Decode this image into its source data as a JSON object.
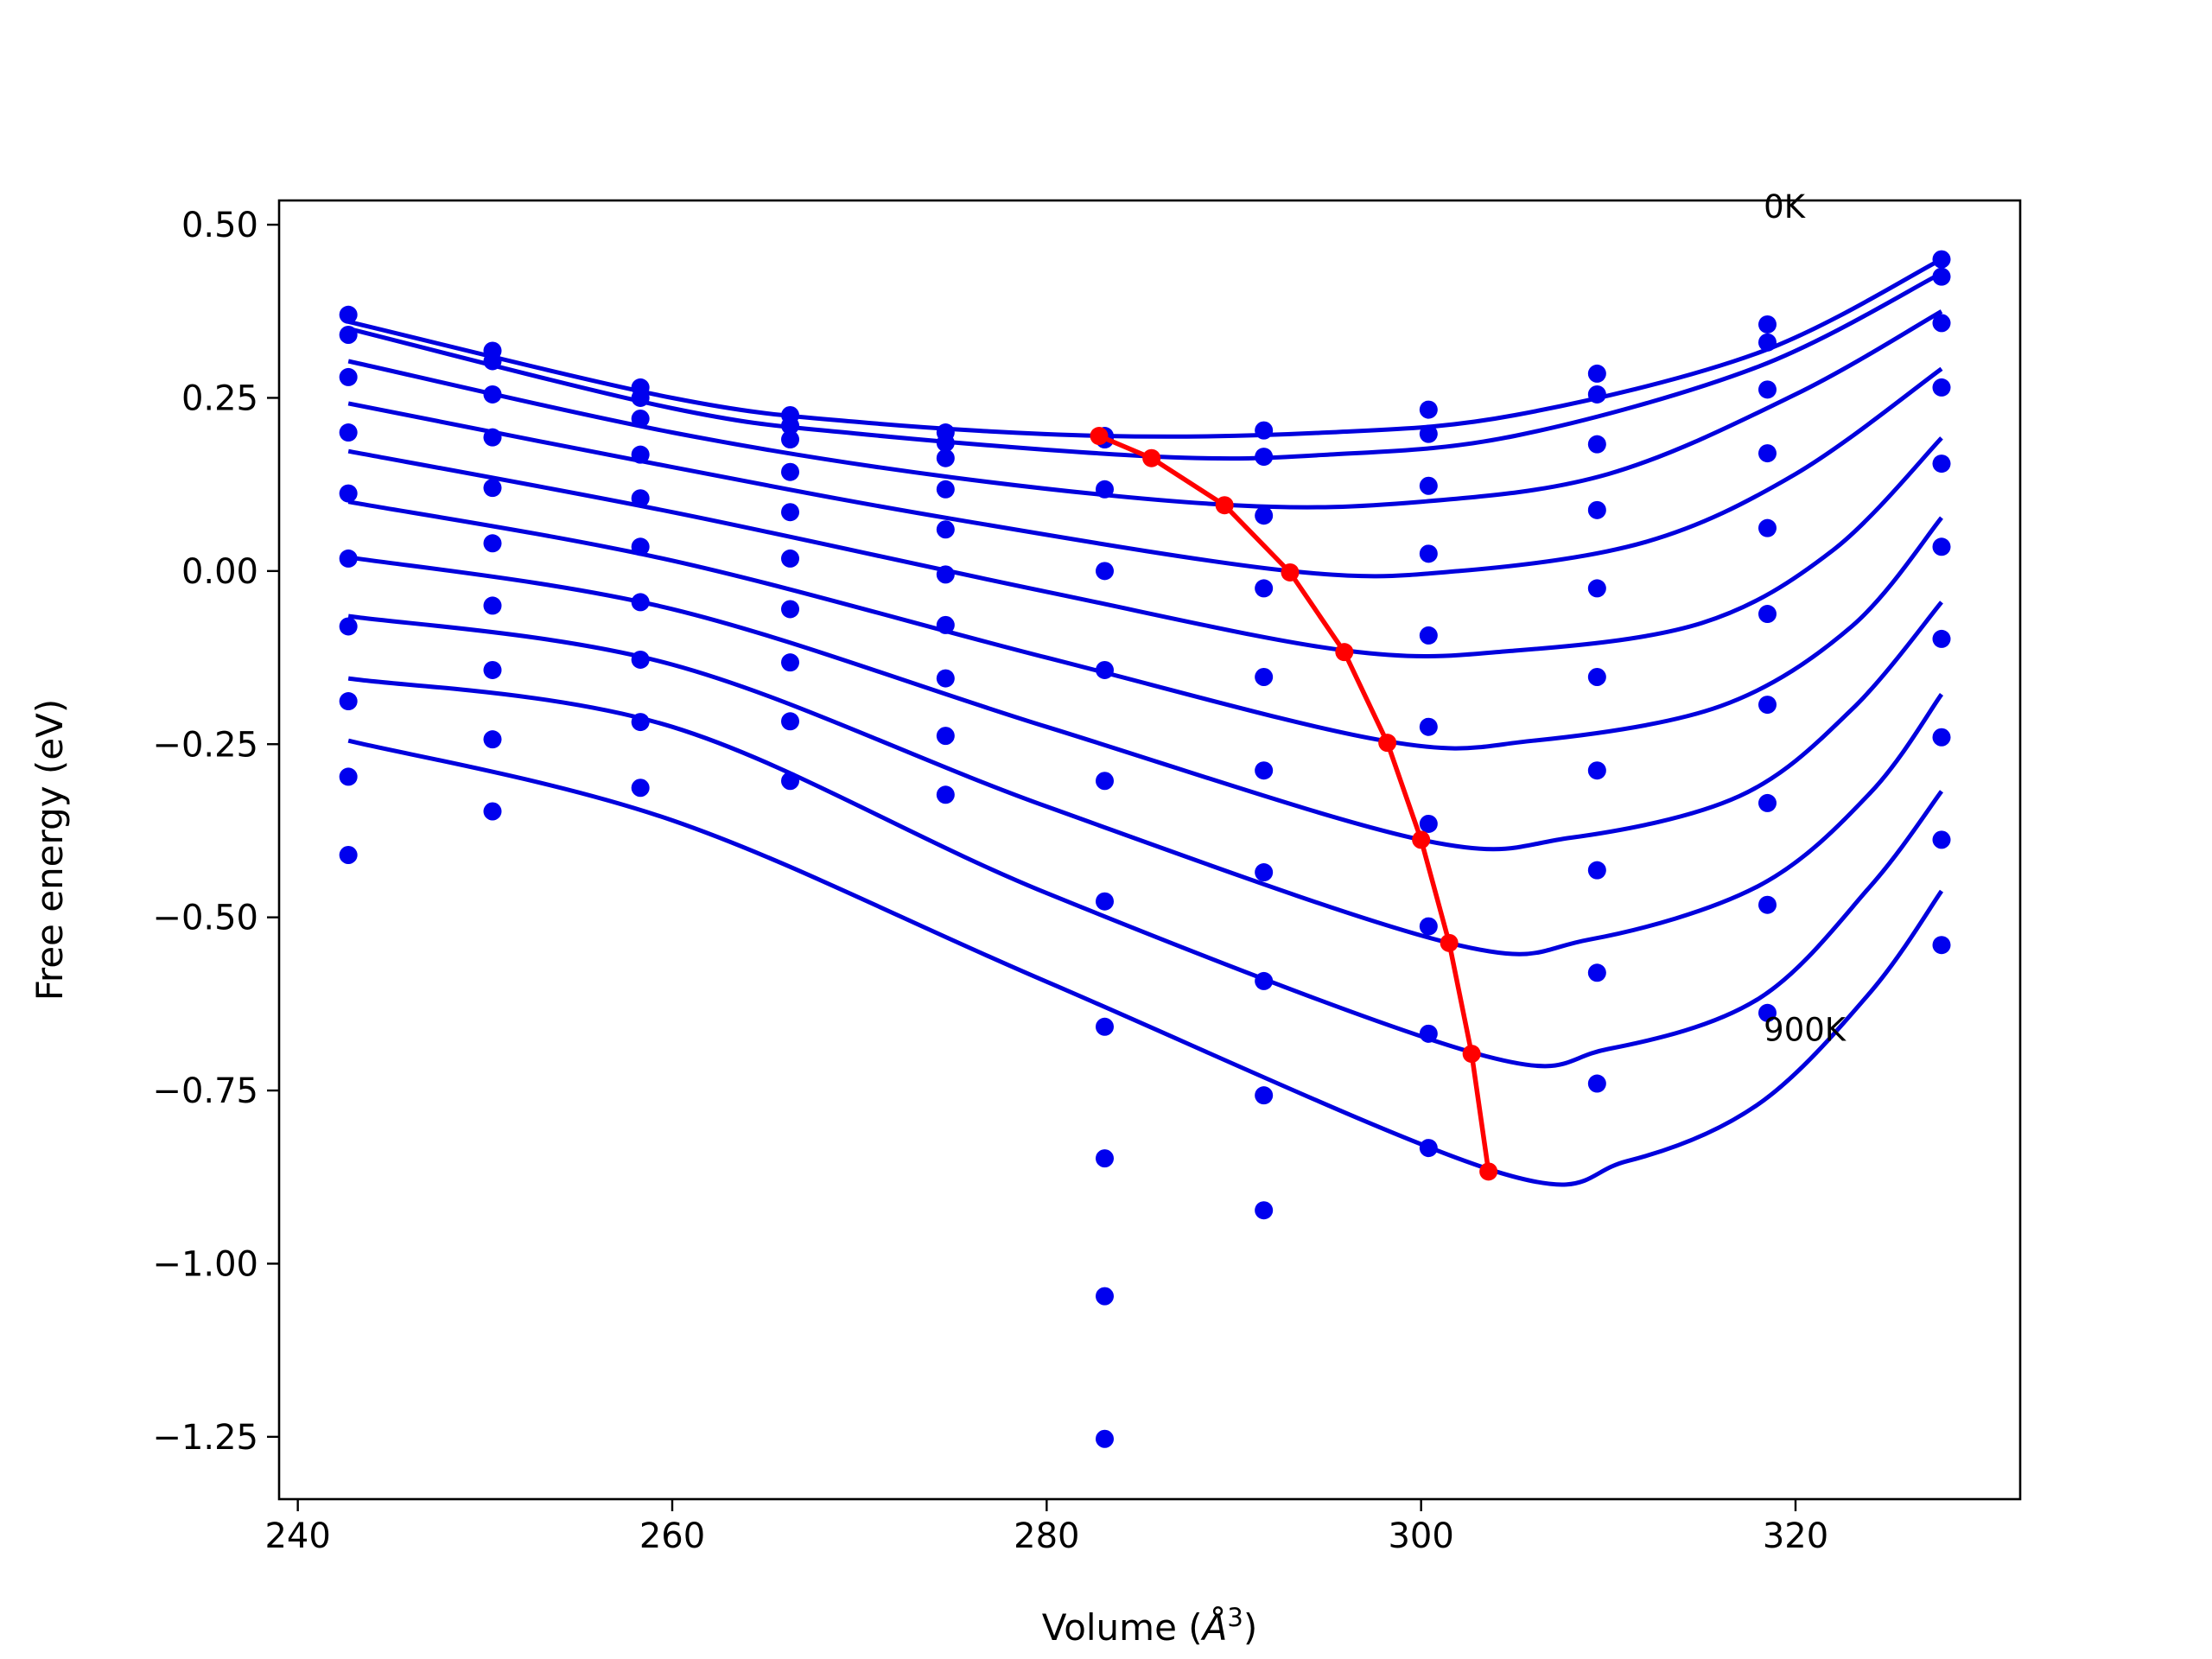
{
  "chart_data": {
    "type": "line",
    "title": "",
    "xlabel": "Volume",
    "xlabel_unit_base": "Å",
    "xlabel_unit_exp": "3",
    "ylabel": "Free energy (eV)",
    "xlim": [
      239,
      332
    ],
    "ylim": [
      -1.34,
      0.535
    ],
    "xticks": [
      240,
      260,
      280,
      300,
      320
    ],
    "yticks": [
      0.5,
      0.25,
      0.0,
      -0.25,
      -0.5,
      -0.75,
      -1.0,
      -1.25
    ],
    "ytick_labels": [
      "0.50",
      "0.25",
      "0.00",
      "−0.25",
      "−0.50",
      "−0.75",
      "−1.00",
      "−1.25"
    ],
    "grid": false,
    "colors": {
      "points": "#0000ee",
      "fits": "#0000dd",
      "minima": "#ff0000",
      "axes": "#000000"
    },
    "annotations": [
      {
        "text": "0K",
        "x": 318.3,
        "y": 0.51
      },
      {
        "text": "900K",
        "x": 318.3,
        "y": -0.678
      }
    ],
    "volumes": [
      242.7,
      250.4,
      258.3,
      266.3,
      274.6,
      283.1,
      291.6,
      300.4,
      309.4,
      318.5,
      327.8
    ],
    "point_series": [
      {
        "x": [
          242.7,
          250.4,
          258.3,
          266.3,
          274.6,
          283.1,
          291.6,
          300.4,
          309.4,
          318.5,
          327.8
        ],
        "y": [
          0.37,
          0.318,
          0.265,
          0.225,
          0.2,
          0.195,
          0.203,
          0.233,
          0.285,
          0.356,
          0.45
        ]
      },
      {
        "x": [
          242.7,
          250.4,
          258.3,
          266.3,
          274.6,
          283.1,
          291.6,
          300.4,
          309.4,
          318.5,
          327.8
        ],
        "y": [
          0.341,
          0.303,
          0.25,
          0.21,
          0.185,
          0.19,
          0.165,
          0.198,
          0.255,
          0.33,
          0.425
        ]
      },
      {
        "x": [
          242.7,
          250.4,
          258.3,
          266.3,
          274.6,
          283.1,
          291.6,
          300.4,
          309.4,
          318.5,
          327.8
        ],
        "y": [
          0.28,
          0.255,
          0.22,
          0.19,
          0.163,
          0.118,
          0.08,
          0.123,
          0.183,
          0.262,
          0.358
        ]
      },
      {
        "x": [
          242.7,
          250.4,
          258.3,
          266.3,
          274.6,
          283.1,
          291.6,
          300.4,
          309.4,
          318.5,
          327.8
        ],
        "y": [
          0.2,
          0.193,
          0.168,
          0.143,
          0.118,
          0.0,
          -0.025,
          0.025,
          0.088,
          0.17,
          0.265
        ]
      },
      {
        "x": [
          242.7,
          250.4,
          258.3,
          266.3,
          274.6,
          283.1,
          291.6,
          300.4,
          309.4,
          318.5,
          327.8
        ],
        "y": [
          0.112,
          0.12,
          0.105,
          0.085,
          0.06,
          -0.143,
          -0.153,
          -0.093,
          -0.025,
          0.062,
          0.155
        ]
      },
      {
        "x": [
          242.7,
          250.4,
          258.3,
          266.3,
          274.6,
          283.1,
          291.6,
          300.4,
          309.4,
          318.5,
          327.8
        ],
        "y": [
          0.018,
          0.04,
          0.035,
          0.018,
          -0.005,
          -0.303,
          -0.288,
          -0.225,
          -0.153,
          -0.062,
          0.035
        ]
      },
      {
        "x": [
          242.7,
          250.4,
          258.3,
          266.3,
          274.6,
          283.1,
          291.6,
          300.4,
          309.4,
          318.5,
          327.8
        ],
        "y": [
          -0.08,
          -0.05,
          -0.045,
          -0.055,
          -0.078,
          -0.477,
          -0.435,
          -0.365,
          -0.288,
          -0.193,
          -0.098
        ]
      },
      {
        "x": [
          242.7,
          250.4,
          258.3,
          266.3,
          274.6,
          283.1,
          291.6,
          300.4,
          309.4,
          318.5,
          327.8
        ],
        "y": [
          -0.188,
          -0.143,
          -0.128,
          -0.132,
          -0.155,
          -0.658,
          -0.592,
          -0.513,
          -0.432,
          -0.335,
          -0.24
        ]
      },
      {
        "x": [
          242.7,
          250.4,
          258.3,
          266.3,
          274.6,
          283.1,
          291.6,
          300.4,
          309.4,
          318.5,
          327.8
        ],
        "y": [
          -0.297,
          -0.243,
          -0.218,
          -0.217,
          -0.238,
          -0.848,
          -0.757,
          -0.668,
          -0.58,
          -0.482,
          -0.388
        ]
      },
      {
        "x": [
          242.7,
          250.4,
          258.3,
          266.3,
          274.6,
          283.1,
          291.6,
          300.4,
          309.4,
          318.5,
          327.8
        ],
        "y": [
          -0.41,
          -0.347,
          -0.313,
          -0.303,
          -0.323,
          -1.047,
          -0.923,
          -0.833,
          -0.74,
          -0.638,
          -0.54
        ]
      },
      {
        "x": [
          283.1
        ],
        "y": [
          -1.253
        ]
      }
    ],
    "fit_curves": [
      {
        "x": [
          242.7,
          260,
          270,
          283,
          295,
          305,
          318,
          327.8
        ],
        "y": [
          0.36,
          0.25,
          0.215,
          0.195,
          0.2,
          0.225,
          0.315,
          0.45
        ]
      },
      {
        "x": [
          242.7,
          260,
          270,
          286,
          295,
          305,
          318,
          327.8
        ],
        "y": [
          0.35,
          0.235,
          0.198,
          0.165,
          0.168,
          0.195,
          0.295,
          0.43
        ]
      },
      {
        "x": [
          242.7,
          260,
          275,
          290,
          300,
          310,
          320,
          327.8
        ],
        "y": [
          0.303,
          0.2,
          0.135,
          0.095,
          0.1,
          0.14,
          0.255,
          0.375
        ]
      },
      {
        "x": [
          242.7,
          260,
          275,
          293,
          302,
          312,
          320,
          327.8
        ],
        "y": [
          0.242,
          0.15,
          0.075,
          0.0,
          0.0,
          0.042,
          0.14,
          0.292
        ]
      },
      {
        "x": [
          242.7,
          260,
          280,
          296,
          305,
          315,
          322,
          327.8
        ],
        "y": [
          0.173,
          0.085,
          -0.03,
          -0.115,
          -0.115,
          -0.075,
          0.03,
          0.192
        ]
      },
      {
        "x": [
          242.7,
          260,
          280,
          298,
          306,
          316,
          323,
          327.8
        ],
        "y": [
          0.1,
          0.015,
          -0.125,
          -0.245,
          -0.245,
          -0.195,
          -0.08,
          0.077
        ]
      },
      {
        "x": [
          242.7,
          260,
          280,
          300,
          308,
          317,
          323,
          327.8
        ],
        "y": [
          0.02,
          -0.055,
          -0.225,
          -0.388,
          -0.385,
          -0.325,
          -0.2,
          -0.045
        ]
      },
      {
        "x": [
          242.7,
          260,
          280,
          301.5,
          309,
          318,
          324,
          327.8
        ],
        "y": [
          -0.065,
          -0.135,
          -0.34,
          -0.537,
          -0.532,
          -0.455,
          -0.32,
          -0.178
        ]
      },
      {
        "x": [
          242.7,
          260,
          280,
          303,
          310,
          318,
          324,
          327.8
        ],
        "y": [
          -0.155,
          -0.225,
          -0.465,
          -0.697,
          -0.69,
          -0.618,
          -0.455,
          -0.318
        ]
      },
      {
        "x": [
          242.7,
          260,
          280,
          304,
          311,
          318,
          324,
          327.8
        ],
        "y": [
          -0.245,
          -0.36,
          -0.593,
          -0.867,
          -0.852,
          -0.77,
          -0.608,
          -0.462
        ]
      }
    ],
    "minima": {
      "x": [
        282.8,
        285.6,
        289.5,
        293.0,
        295.9,
        298.2,
        300.0,
        301.5,
        302.7,
        303.6
      ],
      "y": [
        0.195,
        0.163,
        0.095,
        -0.002,
        -0.117,
        -0.248,
        -0.388,
        -0.537,
        -0.697,
        -0.867
      ]
    }
  }
}
